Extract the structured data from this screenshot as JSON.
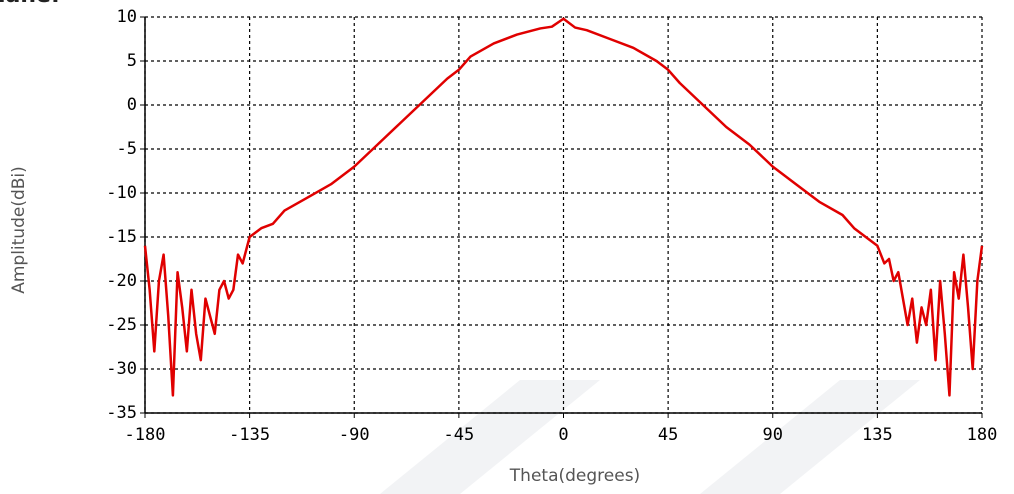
{
  "chart_data": {
    "type": "line",
    "annotation": "lane:",
    "xlabel": "Theta(degrees)",
    "ylabel": "Amplitude(dBi)",
    "xlim": [
      -180,
      180
    ],
    "xticks": [
      -180,
      -135,
      -90,
      -45,
      0,
      45,
      90,
      135,
      180
    ],
    "ylim": [
      -35,
      10
    ],
    "yticks": [
      -35,
      -30,
      -25,
      -20,
      -15,
      -10,
      -5,
      0,
      5,
      10
    ],
    "grid": true,
    "x": [
      -180,
      -178,
      -176,
      -174,
      -172,
      -170,
      -168,
      -166,
      -164,
      -162,
      -160,
      -158,
      -156,
      -154,
      -152,
      -150,
      -148,
      -146,
      -144,
      -142,
      -140,
      -138,
      -135,
      -130,
      -125,
      -120,
      -110,
      -100,
      -90,
      -80,
      -70,
      -60,
      -50,
      -45,
      -40,
      -30,
      -20,
      -10,
      -5,
      0,
      5,
      10,
      20,
      30,
      40,
      45,
      50,
      60,
      70,
      80,
      90,
      100,
      110,
      120,
      125,
      130,
      135,
      138,
      140,
      142,
      144,
      146,
      148,
      150,
      152,
      154,
      156,
      158,
      160,
      162,
      164,
      166,
      168,
      170,
      172,
      174,
      176,
      178,
      180
    ],
    "series": [
      {
        "color": "#e00000",
        "values": [
          -16,
          -21,
          -28,
          -20,
          -17,
          -24,
          -33,
          -19,
          -23,
          -28,
          -21,
          -26,
          -29,
          -22,
          -24,
          -26,
          -21,
          -20,
          -22,
          -21,
          -17,
          -18,
          -15,
          -14,
          -13.5,
          -12,
          -10.5,
          -9,
          -7,
          -4.5,
          -2,
          0.5,
          3,
          4,
          5.5,
          7,
          8,
          8.7,
          8.9,
          9.8,
          8.8,
          8.5,
          7.5,
          6.5,
          5,
          4,
          2.5,
          0,
          -2.5,
          -4.5,
          -7,
          -9,
          -11,
          -12.5,
          -14,
          -15,
          -16,
          -18,
          -17.5,
          -20,
          -19,
          -22,
          -25,
          -22,
          -27,
          -23,
          -25,
          -21,
          -29,
          -20,
          -26,
          -33,
          -19,
          -22,
          -17,
          -23,
          -30,
          -20,
          -16
        ]
      }
    ]
  }
}
